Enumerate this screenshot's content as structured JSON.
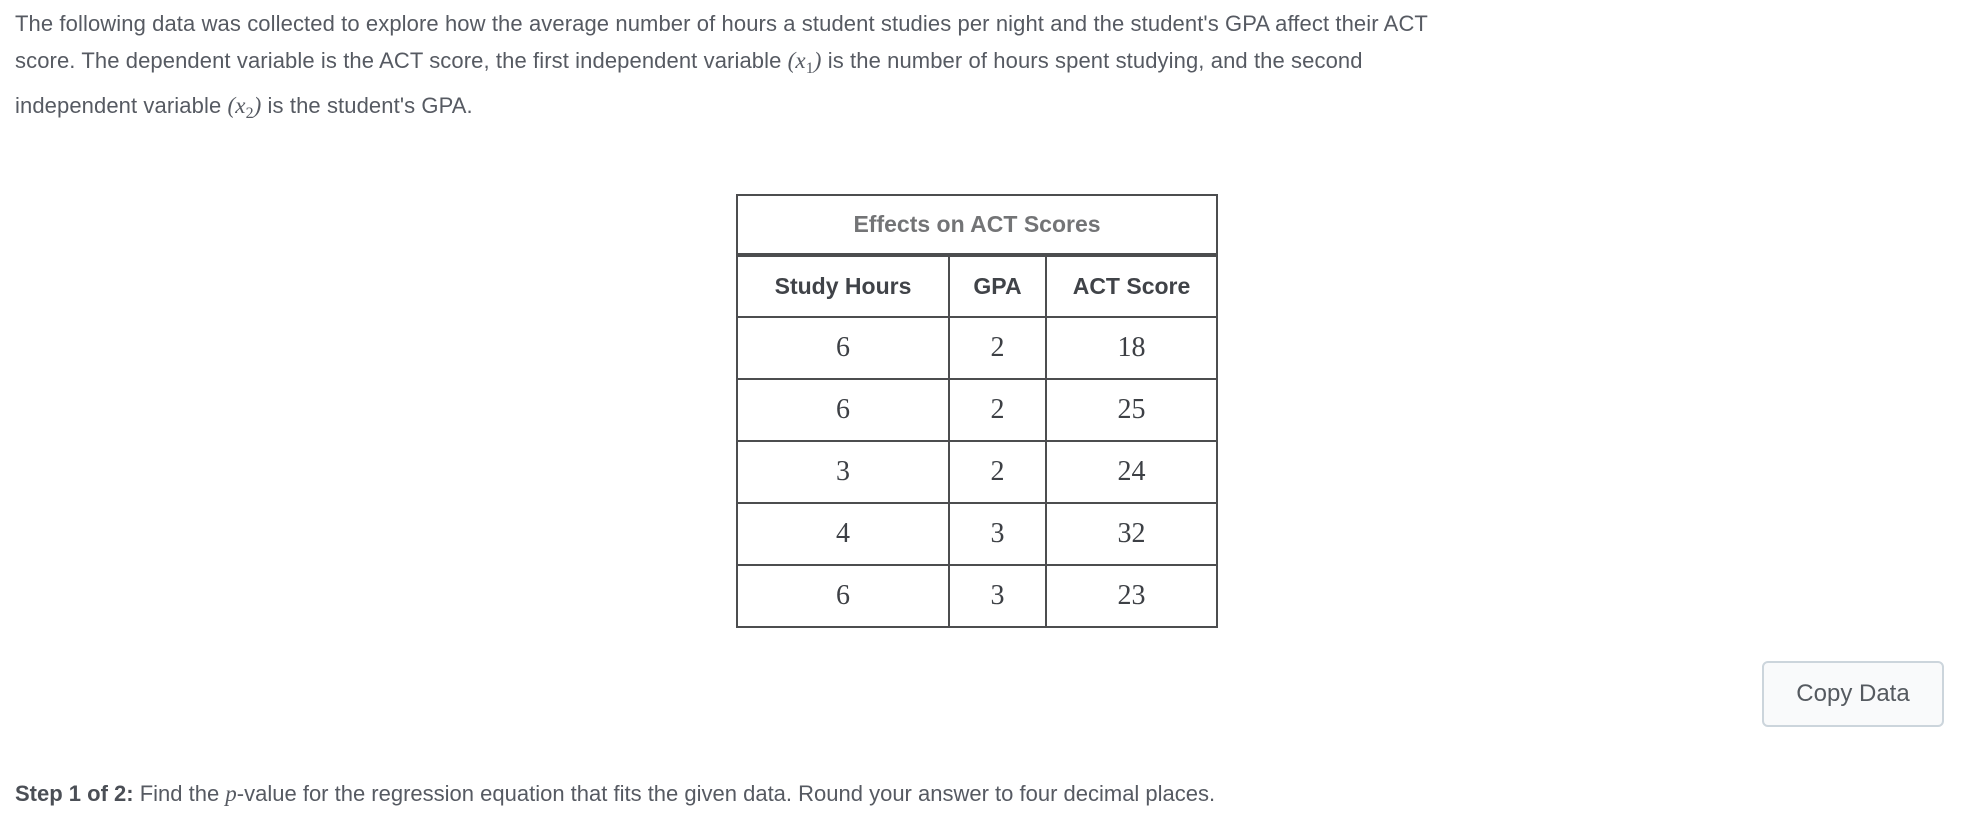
{
  "intro": {
    "line1": "The following data was collected to explore how the average number of hours a student studies per night and the student's GPA affect their ACT",
    "line2_pre": "score. The dependent variable is the ACT score, the first independent variable ",
    "line2_math_pre": "(x",
    "line2_sub": "1",
    "line2_math_post": ")",
    "line2_post": " is the number of hours spent studying, and the second",
    "line3_pre": "independent variable ",
    "line3_math_pre": "(x",
    "line3_sub": "2",
    "line3_math_post": ")",
    "line3_post": " is the student's GPA."
  },
  "table": {
    "title": "Effects on ACT Scores",
    "headers": [
      "Study Hours",
      "GPA",
      "ACT Score"
    ],
    "rows": [
      [
        "6",
        "2",
        "18"
      ],
      [
        "6",
        "2",
        "25"
      ],
      [
        "3",
        "2",
        "24"
      ],
      [
        "4",
        "3",
        "32"
      ],
      [
        "6",
        "3",
        "23"
      ]
    ]
  },
  "copy_button": {
    "label": "Copy Data"
  },
  "step": {
    "label": "Step 1 of 2:",
    "pre": " Find the ",
    "var": "p",
    "post": "-value for the regression equation that fits the given data. Round your answer to four decimal places."
  },
  "colors": {
    "body_text": "#565a62",
    "table_border": "#4c4d4f",
    "table_title_text": "#737476",
    "table_header_text": "#404348",
    "table_data_text": "#3d4045",
    "button_border": "#ccd5dc",
    "button_background": "#f9fafb",
    "page_background": "#ffffff"
  }
}
